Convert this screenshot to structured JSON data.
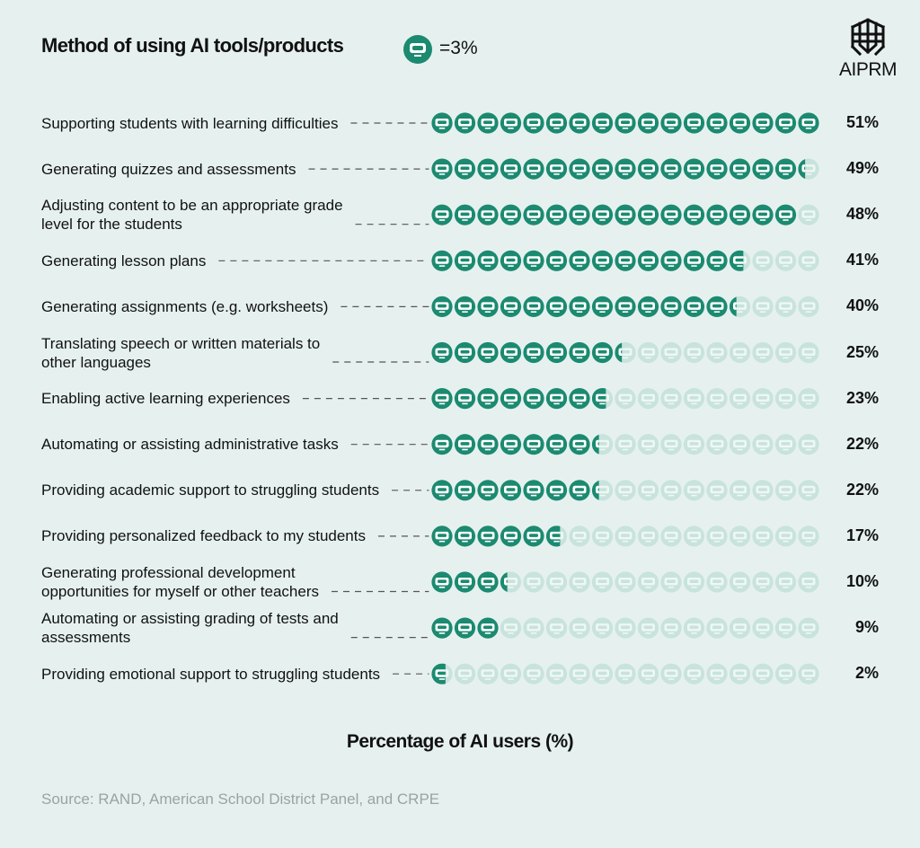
{
  "title": "Method of using AI tools/products",
  "legend": {
    "icon": "robot-face-icon",
    "text": "=3%"
  },
  "logo": {
    "text": "AIPRM",
    "icon": "aiprm-logo-icon"
  },
  "colors": {
    "filled": "#1b8a70",
    "empty": "#c8e3dc",
    "background": "#e6f1ef",
    "dash": "#555555"
  },
  "chart_data": {
    "type": "bar",
    "subtype": "pictograph",
    "unit_per_icon": 3,
    "icons_per_row": 17,
    "categories": [
      "Supporting students with learning difficulties",
      "Generating quizzes and assessments",
      "Adjusting content to be an appropriate grade level for the students",
      "Generating lesson plans",
      "Generating assignments (e.g. worksheets)",
      "Translating speech or written materials to other languages",
      "Enabling active learning experiences",
      "Automating or assisting administrative tasks",
      "Providing academic support to struggling students",
      "Providing personalized feedback to my students",
      "Generating professional development opportunities for myself or other teachers",
      "Automating or assisting grading of tests and assessments",
      "Providing emotional support to struggling students"
    ],
    "category_lines": [
      [
        "Supporting students with learning difficulties"
      ],
      [
        "Generating quizzes and assessments"
      ],
      [
        "Adjusting content to be an appropriate grade",
        "level for the students"
      ],
      [
        "Generating lesson plans"
      ],
      [
        "Generating assignments (e.g. worksheets)"
      ],
      [
        "Translating speech or written materials to",
        "other languages"
      ],
      [
        "Enabling active learning experiences"
      ],
      [
        "Automating or assisting administrative tasks"
      ],
      [
        "Providing academic support to struggling students"
      ],
      [
        "Providing personalized feedback to my students"
      ],
      [
        "Generating professional development",
        "opportunities for myself or other teachers"
      ],
      [
        "Automating or assisting grading of tests and",
        "assessments"
      ],
      [
        "Providing emotional support to struggling students"
      ]
    ],
    "values": [
      51,
      49,
      48,
      41,
      40,
      25,
      23,
      22,
      22,
      17,
      10,
      9,
      2
    ],
    "value_labels": [
      "51%",
      "49%",
      "48%",
      "41%",
      "40%",
      "25%",
      "23%",
      "22%",
      "22%",
      "17%",
      "10%",
      "9%",
      "2%"
    ],
    "xlabel": "Percentage of AI users (%)"
  },
  "source": "Source: RAND, American School District Panel, and CRPE"
}
